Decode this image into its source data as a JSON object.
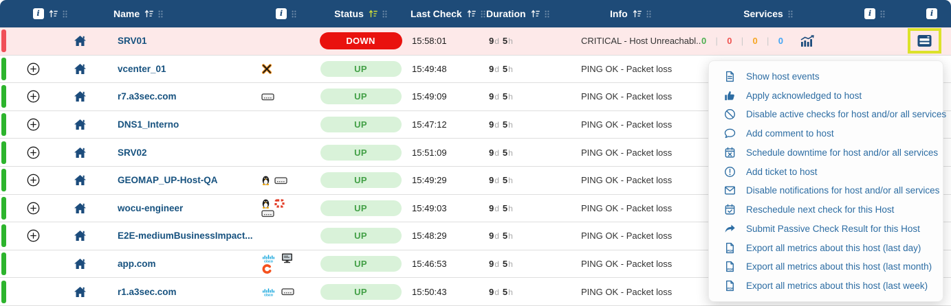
{
  "table": {
    "headers": {
      "name": "Name",
      "status": "Status",
      "last_check": "Last Check",
      "duration": "Duration",
      "info": "Info",
      "services": "Services"
    },
    "duration_units": {
      "days": "d",
      "hours": "h"
    },
    "rows": [
      {
        "name": "SRV01",
        "status": "DOWN",
        "state": "down",
        "expandable": false,
        "last_check": "15:58:01",
        "duration_days": "9",
        "duration_hours": "5",
        "info": "CRITICAL - Host Unreachabl...",
        "devices": [],
        "service_counts": [
          {
            "value": "0",
            "color": "#4caf50"
          },
          {
            "value": "0",
            "color": "#ef5350"
          },
          {
            "value": "0",
            "color": "#f5a623"
          },
          {
            "value": "0",
            "color": "#42a5f5"
          }
        ],
        "has_chart": true,
        "has_actions": true,
        "actions_highlighted": true
      },
      {
        "name": "vcenter_01",
        "status": "UP",
        "state": "up",
        "expandable": true,
        "last_check": "15:49:48",
        "duration_days": "9",
        "duration_hours": "5",
        "info": "PING OK - Packet loss",
        "devices": [
          "esx-icon"
        ]
      },
      {
        "name": "r7.a3sec.com",
        "status": "UP",
        "state": "up",
        "expandable": true,
        "last_check": "15:49:09",
        "duration_days": "9",
        "duration_hours": "5",
        "info": "PING OK - Packet loss",
        "devices": [
          "server-icon"
        ]
      },
      {
        "name": "DNS1_Interno",
        "status": "UP",
        "state": "up",
        "expandable": true,
        "last_check": "15:47:12",
        "duration_days": "9",
        "duration_hours": "5",
        "info": "PING OK - Packet loss",
        "devices": []
      },
      {
        "name": "SRV02",
        "status": "UP",
        "state": "up",
        "expandable": true,
        "last_check": "15:51:09",
        "duration_days": "9",
        "duration_hours": "5",
        "info": "PING OK - Packet loss",
        "devices": []
      },
      {
        "name": "GEOMAP_UP-Host-QA",
        "status": "UP",
        "state": "up",
        "expandable": true,
        "last_check": "15:49:29",
        "duration_days": "9",
        "duration_hours": "5",
        "info": "PING OK - Packet loss",
        "devices": [
          "tux-icon",
          "server-icon"
        ]
      },
      {
        "name": "wocu-engineer",
        "status": "UP",
        "state": "up",
        "expandable": true,
        "last_check": "15:49:03",
        "duration_days": "9",
        "duration_hours": "5",
        "info": "PING OK - Packet loss",
        "devices": [
          "tux-icon",
          "fortinet-icon",
          "server-icon"
        ]
      },
      {
        "name": "E2E-mediumBusinessImpact...",
        "status": "UP",
        "state": "up",
        "expandable": true,
        "last_check": "15:48:29",
        "duration_days": "9",
        "duration_hours": "5",
        "info": "PING OK - Packet loss",
        "devices": []
      },
      {
        "name": "app.com",
        "status": "UP",
        "state": "up",
        "expandable": false,
        "last_check": "15:46:53",
        "duration_days": "9",
        "duration_hours": "5",
        "info": "PING OK - Packet loss",
        "devices": [
          "cisco-icon",
          "monitor-icon",
          "pure-storage-icon"
        ]
      },
      {
        "name": "r1.a3sec.com",
        "status": "UP",
        "state": "up",
        "expandable": false,
        "last_check": "15:50:43",
        "duration_days": "9",
        "duration_hours": "5",
        "info": "PING OK - Packet loss",
        "devices": [
          "cisco-icon",
          "server-icon"
        ]
      }
    ]
  },
  "context_menu": {
    "items": [
      {
        "icon": "file-lines-icon",
        "label": "Show host events"
      },
      {
        "icon": "thumbs-up-icon",
        "label": "Apply acknowledged to host"
      },
      {
        "icon": "ban-icon",
        "label": "Disable active checks for host and/or all services"
      },
      {
        "icon": "comment-icon",
        "label": "Add comment to host"
      },
      {
        "icon": "calendar-xmark-icon",
        "label": "Schedule downtime for host and/or all services"
      },
      {
        "icon": "circle-exclamation-icon",
        "label": "Add ticket to host"
      },
      {
        "icon": "envelope-icon",
        "label": "Disable notifications for host and/or all services"
      },
      {
        "icon": "calendar-check-icon",
        "label": "Reschedule next check for this Host"
      },
      {
        "icon": "share-arrow-icon",
        "label": "Submit Passive Check Result for this Host"
      },
      {
        "icon": "file-pdf-icon",
        "label": "Export all metrics about this host (last day)"
      },
      {
        "icon": "file-pdf-icon",
        "label": "Export all metrics about this host (last month)"
      },
      {
        "icon": "file-pdf-icon",
        "label": "Export all metrics about this host (last week)"
      }
    ]
  },
  "colors": {
    "header_bg": "#1e4b78",
    "active_sort": "#cddc39",
    "up_strip": "#2db42d",
    "down_strip": "#f05058",
    "down_row_bg": "#fde9e9",
    "up_badge_bg": "#d9f2d9",
    "up_badge_text": "#43a047",
    "down_badge_bg": "#e9120e",
    "highlight_box": "#dce22a",
    "menu_text": "#2d6da3"
  }
}
